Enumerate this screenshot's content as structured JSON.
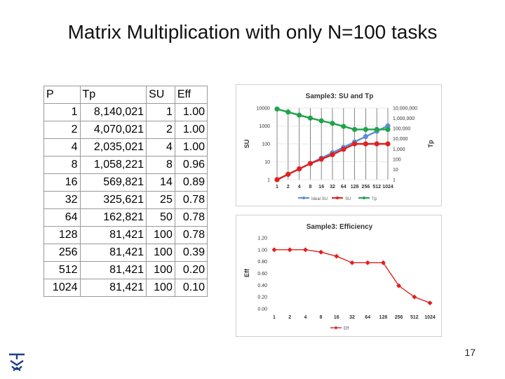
{
  "slide": {
    "title": "Matrix Multiplication with only N=100 tasks",
    "page_number": "17"
  },
  "table": {
    "headers": [
      "P",
      "Tp",
      "SU",
      "Eff"
    ],
    "rows": [
      [
        "1",
        "8,140,021",
        "1",
        "1.00"
      ],
      [
        "2",
        "4,070,021",
        "2",
        "1.00"
      ],
      [
        "4",
        "2,035,021",
        "4",
        "1.00"
      ],
      [
        "8",
        "1,058,221",
        "8",
        "0.96"
      ],
      [
        "16",
        "569,821",
        "14",
        "0.89"
      ],
      [
        "32",
        "325,621",
        "25",
        "0.78"
      ],
      [
        "64",
        "162,821",
        "50",
        "0.78"
      ],
      [
        "128",
        "81,421",
        "100",
        "0.78"
      ],
      [
        "256",
        "81,421",
        "100",
        "0.39"
      ],
      [
        "512",
        "81,421",
        "100",
        "0.20"
      ],
      [
        "1024",
        "81,421",
        "100",
        "0.10"
      ]
    ]
  },
  "chart_data": [
    {
      "type": "line",
      "title": "Sample3: SU and Tp",
      "x": [
        "1",
        "2",
        "4",
        "8",
        "16",
        "32",
        "64",
        "128",
        "256",
        "512",
        "1024"
      ],
      "ylabel": "SU",
      "ylabel_right": "Tp",
      "y_left_ticks": [
        "1",
        "10",
        "100",
        "1000",
        "10000"
      ],
      "y_right_ticks": [
        "1",
        "10",
        "100",
        "1,000",
        "10,000",
        "100,000",
        "1,000,000",
        "10,000,000"
      ],
      "y_scale": "log",
      "ylim": [
        1,
        10000
      ],
      "y2lim": [
        1,
        10000000
      ],
      "grid": true,
      "legend": "bottom",
      "series": [
        {
          "name": "Ideal SU",
          "axis": "left",
          "color": "#5b8fd6",
          "values": [
            1,
            2,
            4,
            8,
            16,
            32,
            64,
            128,
            256,
            512,
            1024
          ]
        },
        {
          "name": "SU",
          "axis": "left",
          "color": "#e0201f",
          "values": [
            1,
            2,
            4,
            8,
            14,
            25,
            50,
            100,
            100,
            100,
            100
          ]
        },
        {
          "name": "Tp",
          "axis": "right",
          "color": "#1fa34a",
          "values": [
            8140021,
            4070021,
            2035021,
            1058221,
            569821,
            325621,
            162821,
            81421,
            81421,
            81421,
            81421
          ]
        }
      ]
    },
    {
      "type": "line",
      "title": "Sample3: Efficiency",
      "x": [
        "1",
        "2",
        "4",
        "8",
        "16",
        "32",
        "64",
        "128",
        "256",
        "512",
        "1024"
      ],
      "ylabel": "Eff",
      "y_ticks": [
        "0.00",
        "0.20",
        "0.40",
        "0.60",
        "0.80",
        "1.00",
        "1.20"
      ],
      "ylim": [
        0,
        1.2
      ],
      "grid": false,
      "legend": "bottom",
      "series": [
        {
          "name": "Eff",
          "color": "#e0201f",
          "values": [
            1.0,
            1.0,
            1.0,
            0.96,
            0.89,
            0.78,
            0.78,
            0.78,
            0.39,
            0.2,
            0.1
          ]
        }
      ]
    }
  ]
}
